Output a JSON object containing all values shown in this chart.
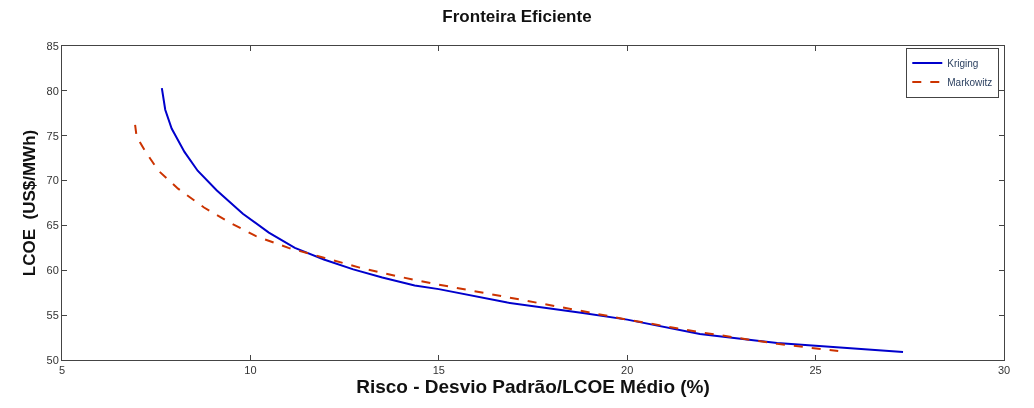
{
  "chart_data": {
    "type": "line",
    "title": "Fronteira Eficiente",
    "xlabel": "Risco - Desvio Padrão/LCOE Médio (%)",
    "ylabel": "LCOE  (US$/MWh)",
    "xlim": [
      5,
      30
    ],
    "xticks": [
      5,
      10,
      15,
      20,
      25,
      30
    ],
    "ylim": [
      50,
      85
    ],
    "yticks": [
      50,
      55,
      60,
      65,
      70,
      75,
      80,
      85
    ],
    "legend": "top right",
    "series": [
      {
        "name": "Kriging",
        "color": "#0000cc",
        "line_style": "solid",
        "x": [
          7.65,
          7.74,
          7.91,
          8.25,
          8.6,
          9.11,
          9.8,
          10.49,
          11.18,
          11.95,
          12.73,
          13.5,
          14.36,
          15.0,
          16.82,
          18.87,
          20.0,
          21.93,
          23.98,
          25.0,
          27.32
        ],
        "values": [
          80.3,
          77.9,
          75.8,
          73.2,
          71.1,
          68.9,
          66.3,
          64.2,
          62.5,
          61.2,
          60.1,
          59.2,
          58.3,
          57.9,
          56.4,
          55.2,
          54.5,
          52.9,
          51.9,
          51.6,
          50.9
        ]
      },
      {
        "name": "Markowitz",
        "color": "#cc3300",
        "line_style": "dashed",
        "x": [
          6.94,
          6.98,
          7.22,
          7.56,
          8.08,
          8.77,
          9.46,
          10.15,
          11.01,
          11.95,
          12.9,
          13.93,
          15.0,
          16.82,
          18.87,
          20.0,
          21.93,
          23.98,
          25.6
        ],
        "values": [
          76.2,
          74.9,
          73.2,
          71.1,
          69.1,
          67.0,
          65.3,
          63.8,
          62.5,
          61.4,
          60.3,
          59.3,
          58.4,
          57.0,
          55.4,
          54.5,
          53.1,
          51.8,
          51.0
        ]
      }
    ]
  }
}
